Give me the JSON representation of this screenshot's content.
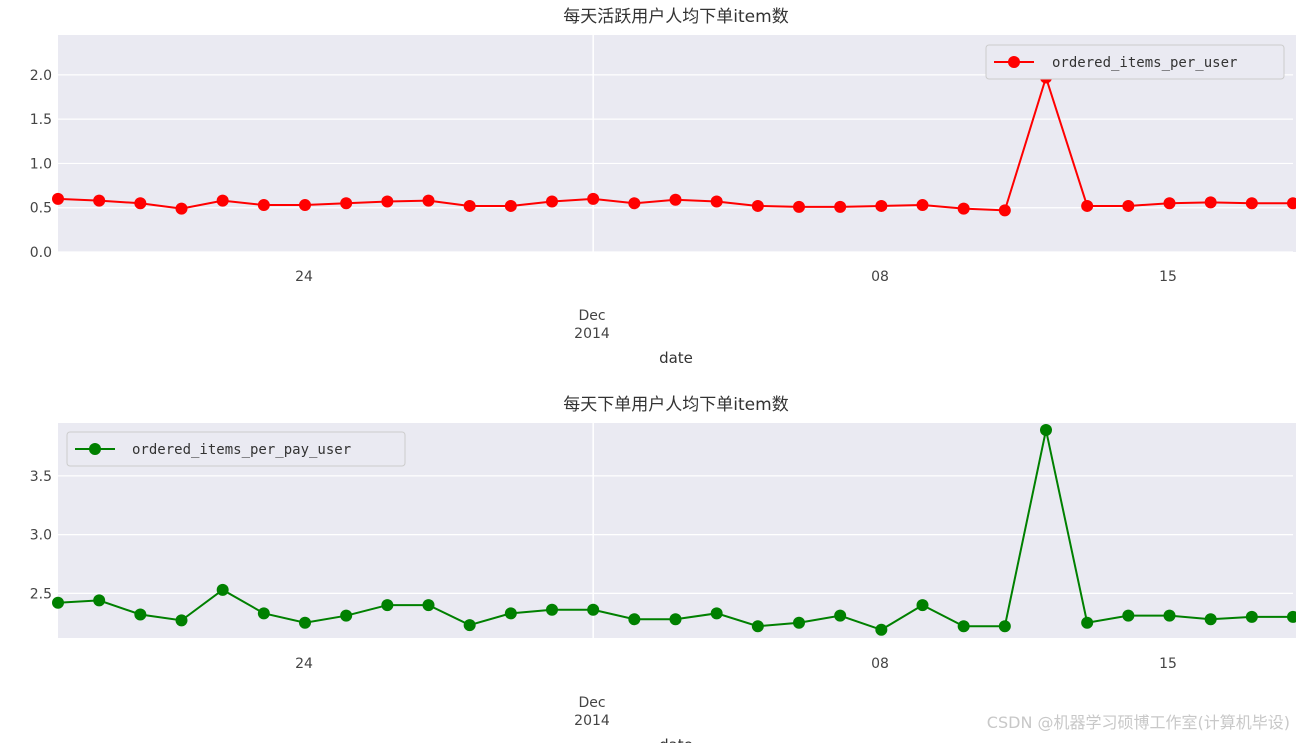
{
  "chart_data": [
    {
      "type": "line",
      "title": "每天活跃用户人均下单item数",
      "xlabel": "date",
      "x_tick_labels": [
        "24",
        "Dec\n2014",
        "08",
        "15"
      ],
      "ylim": [
        0,
        2.45
      ],
      "yticks": [
        "0.0",
        "0.5",
        "1.0",
        "1.5",
        "2.0"
      ],
      "ytick_values": [
        0,
        0.5,
        1.0,
        1.5,
        2.0
      ],
      "x": [
        "2014-11-18",
        "2014-11-19",
        "2014-11-20",
        "2014-11-21",
        "2014-11-22",
        "2014-11-23",
        "2014-11-24",
        "2014-11-25",
        "2014-11-26",
        "2014-11-27",
        "2014-11-28",
        "2014-11-29",
        "2014-11-30",
        "2014-12-01",
        "2014-12-02",
        "2014-12-03",
        "2014-12-04",
        "2014-12-05",
        "2014-12-06",
        "2014-12-07",
        "2014-12-08",
        "2014-12-09",
        "2014-12-10",
        "2014-12-11",
        "2014-12-12",
        "2014-12-13",
        "2014-12-14",
        "2014-12-15",
        "2014-12-16",
        "2014-12-17",
        "2014-12-18"
      ],
      "series": [
        {
          "name": "ordered_items_per_user",
          "color": "#ff0000",
          "values": [
            0.6,
            0.58,
            0.55,
            0.49,
            0.58,
            0.53,
            0.53,
            0.55,
            0.57,
            0.58,
            0.52,
            0.52,
            0.57,
            0.6,
            0.55,
            0.59,
            0.57,
            0.52,
            0.51,
            0.51,
            0.52,
            0.53,
            0.49,
            0.47,
            1.97,
            0.52,
            0.52,
            0.55,
            0.56,
            0.55,
            0.55
          ]
        }
      ],
      "legend": "top-right",
      "grid": true
    },
    {
      "type": "line",
      "title": "每天下单用户人均下单item数",
      "xlabel": "date",
      "x_tick_labels": [
        "24",
        "Dec\n2014",
        "08",
        "15"
      ],
      "ylim": [
        2.12,
        3.95
      ],
      "yticks": [
        "2.5",
        "3.0",
        "3.5"
      ],
      "ytick_values": [
        2.5,
        3.0,
        3.5
      ],
      "x": [
        "2014-11-18",
        "2014-11-19",
        "2014-11-20",
        "2014-11-21",
        "2014-11-22",
        "2014-11-23",
        "2014-11-24",
        "2014-11-25",
        "2014-11-26",
        "2014-11-27",
        "2014-11-28",
        "2014-11-29",
        "2014-11-30",
        "2014-12-01",
        "2014-12-02",
        "2014-12-03",
        "2014-12-04",
        "2014-12-05",
        "2014-12-06",
        "2014-12-07",
        "2014-12-08",
        "2014-12-09",
        "2014-12-10",
        "2014-12-11",
        "2014-12-12",
        "2014-12-13",
        "2014-12-14",
        "2014-12-15",
        "2014-12-16",
        "2014-12-17",
        "2014-12-18"
      ],
      "series": [
        {
          "name": "ordered_items_per_pay_user",
          "color": "#008000",
          "values": [
            2.42,
            2.44,
            2.32,
            2.27,
            2.53,
            2.33,
            2.25,
            2.31,
            2.4,
            2.4,
            2.23,
            2.33,
            2.36,
            2.36,
            2.28,
            2.28,
            2.33,
            2.22,
            2.25,
            2.31,
            2.19,
            2.4,
            2.22,
            2.22,
            3.89,
            2.25,
            2.31,
            2.31,
            2.28,
            2.3,
            2.3
          ]
        }
      ],
      "legend": "top-left",
      "grid": true
    }
  ],
  "watermark": "CSDN @机器学习硕博工作室(计算机毕设)"
}
